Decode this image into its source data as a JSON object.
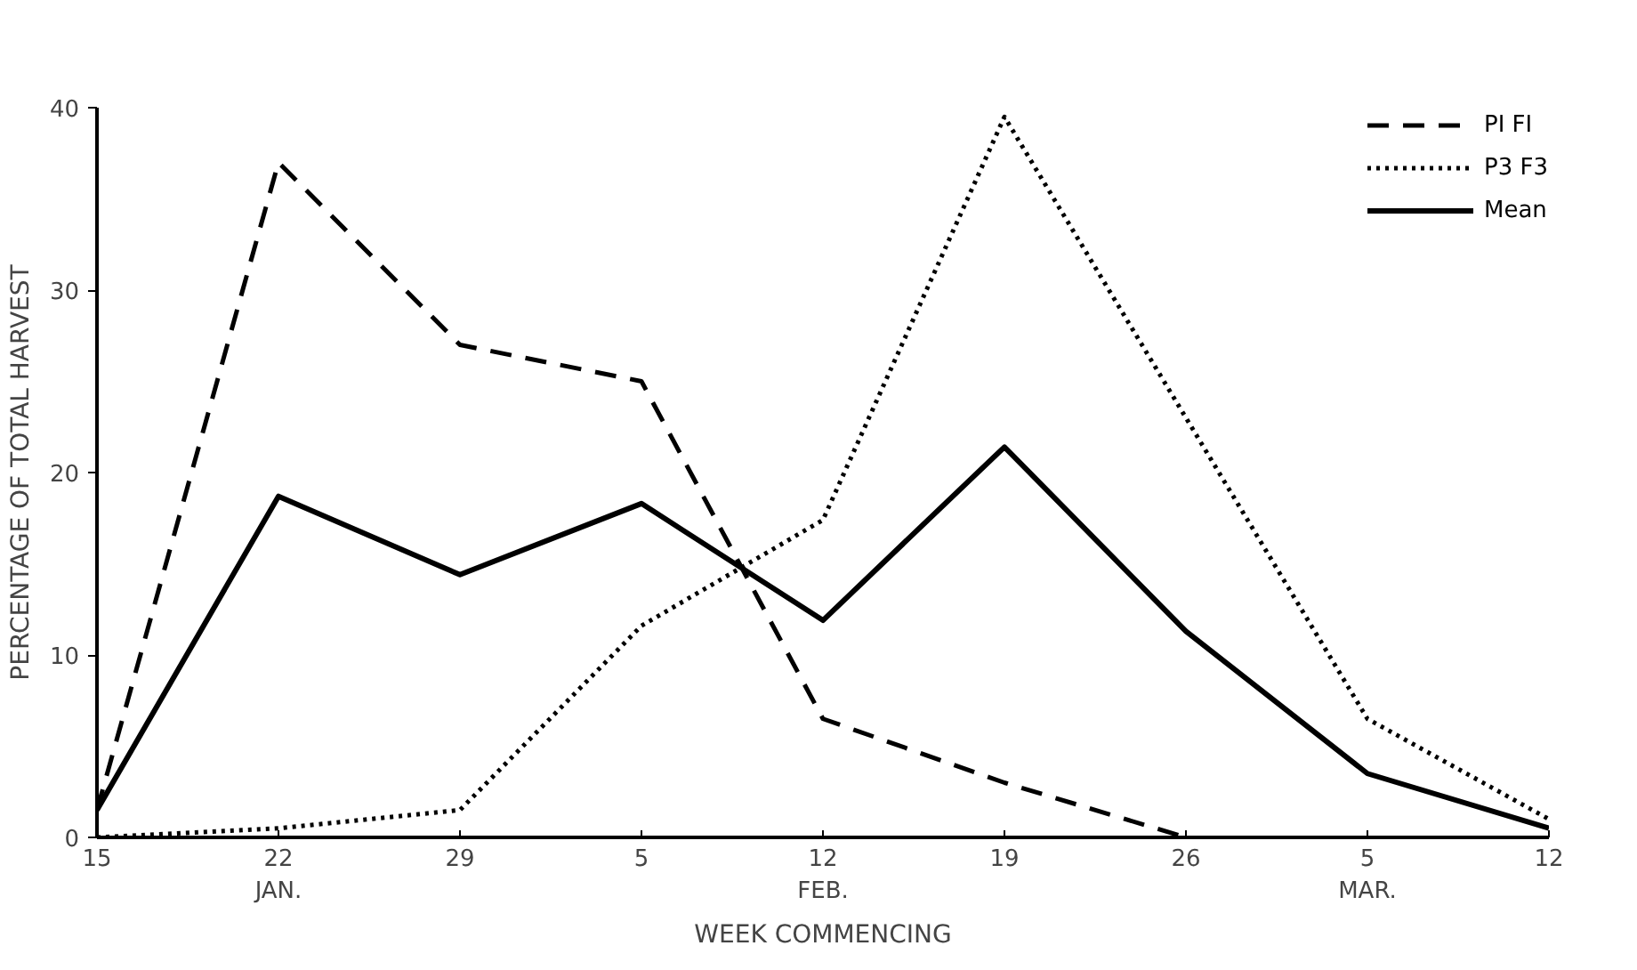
{
  "chart_data": {
    "type": "line",
    "xlabel": "WEEK COMMENCING",
    "ylabel": "PERCENTAGE OF TOTAL HARVEST",
    "categories": [
      "15",
      "22\nJAN.",
      "29",
      "5",
      "12\nFEB.",
      "19",
      "26",
      "5\nMAR.",
      "12"
    ],
    "series": [
      {
        "name": "PI FI",
        "color": "#000000",
        "line_style": "dashed",
        "values": [
          1.5,
          37,
          27,
          25,
          6.5,
          3,
          0,
          null,
          null
        ]
      },
      {
        "name": "P3 F3",
        "color": "#000000",
        "line_style": "dotted",
        "values": [
          0,
          0.5,
          1.5,
          11.6,
          17.4,
          39.5,
          23,
          6.5,
          1
        ]
      },
      {
        "name": "Mean",
        "color": "#000000",
        "line_style": "solid",
        "values": [
          1.5,
          18.7,
          14.4,
          18.3,
          11.9,
          21.4,
          11.3,
          3.5,
          0.5
        ]
      }
    ],
    "ylim": [
      0,
      40
    ],
    "yticks": [
      0,
      10,
      20,
      30,
      40
    ],
    "grid": false,
    "legend": "top right",
    "marker": "none"
  }
}
